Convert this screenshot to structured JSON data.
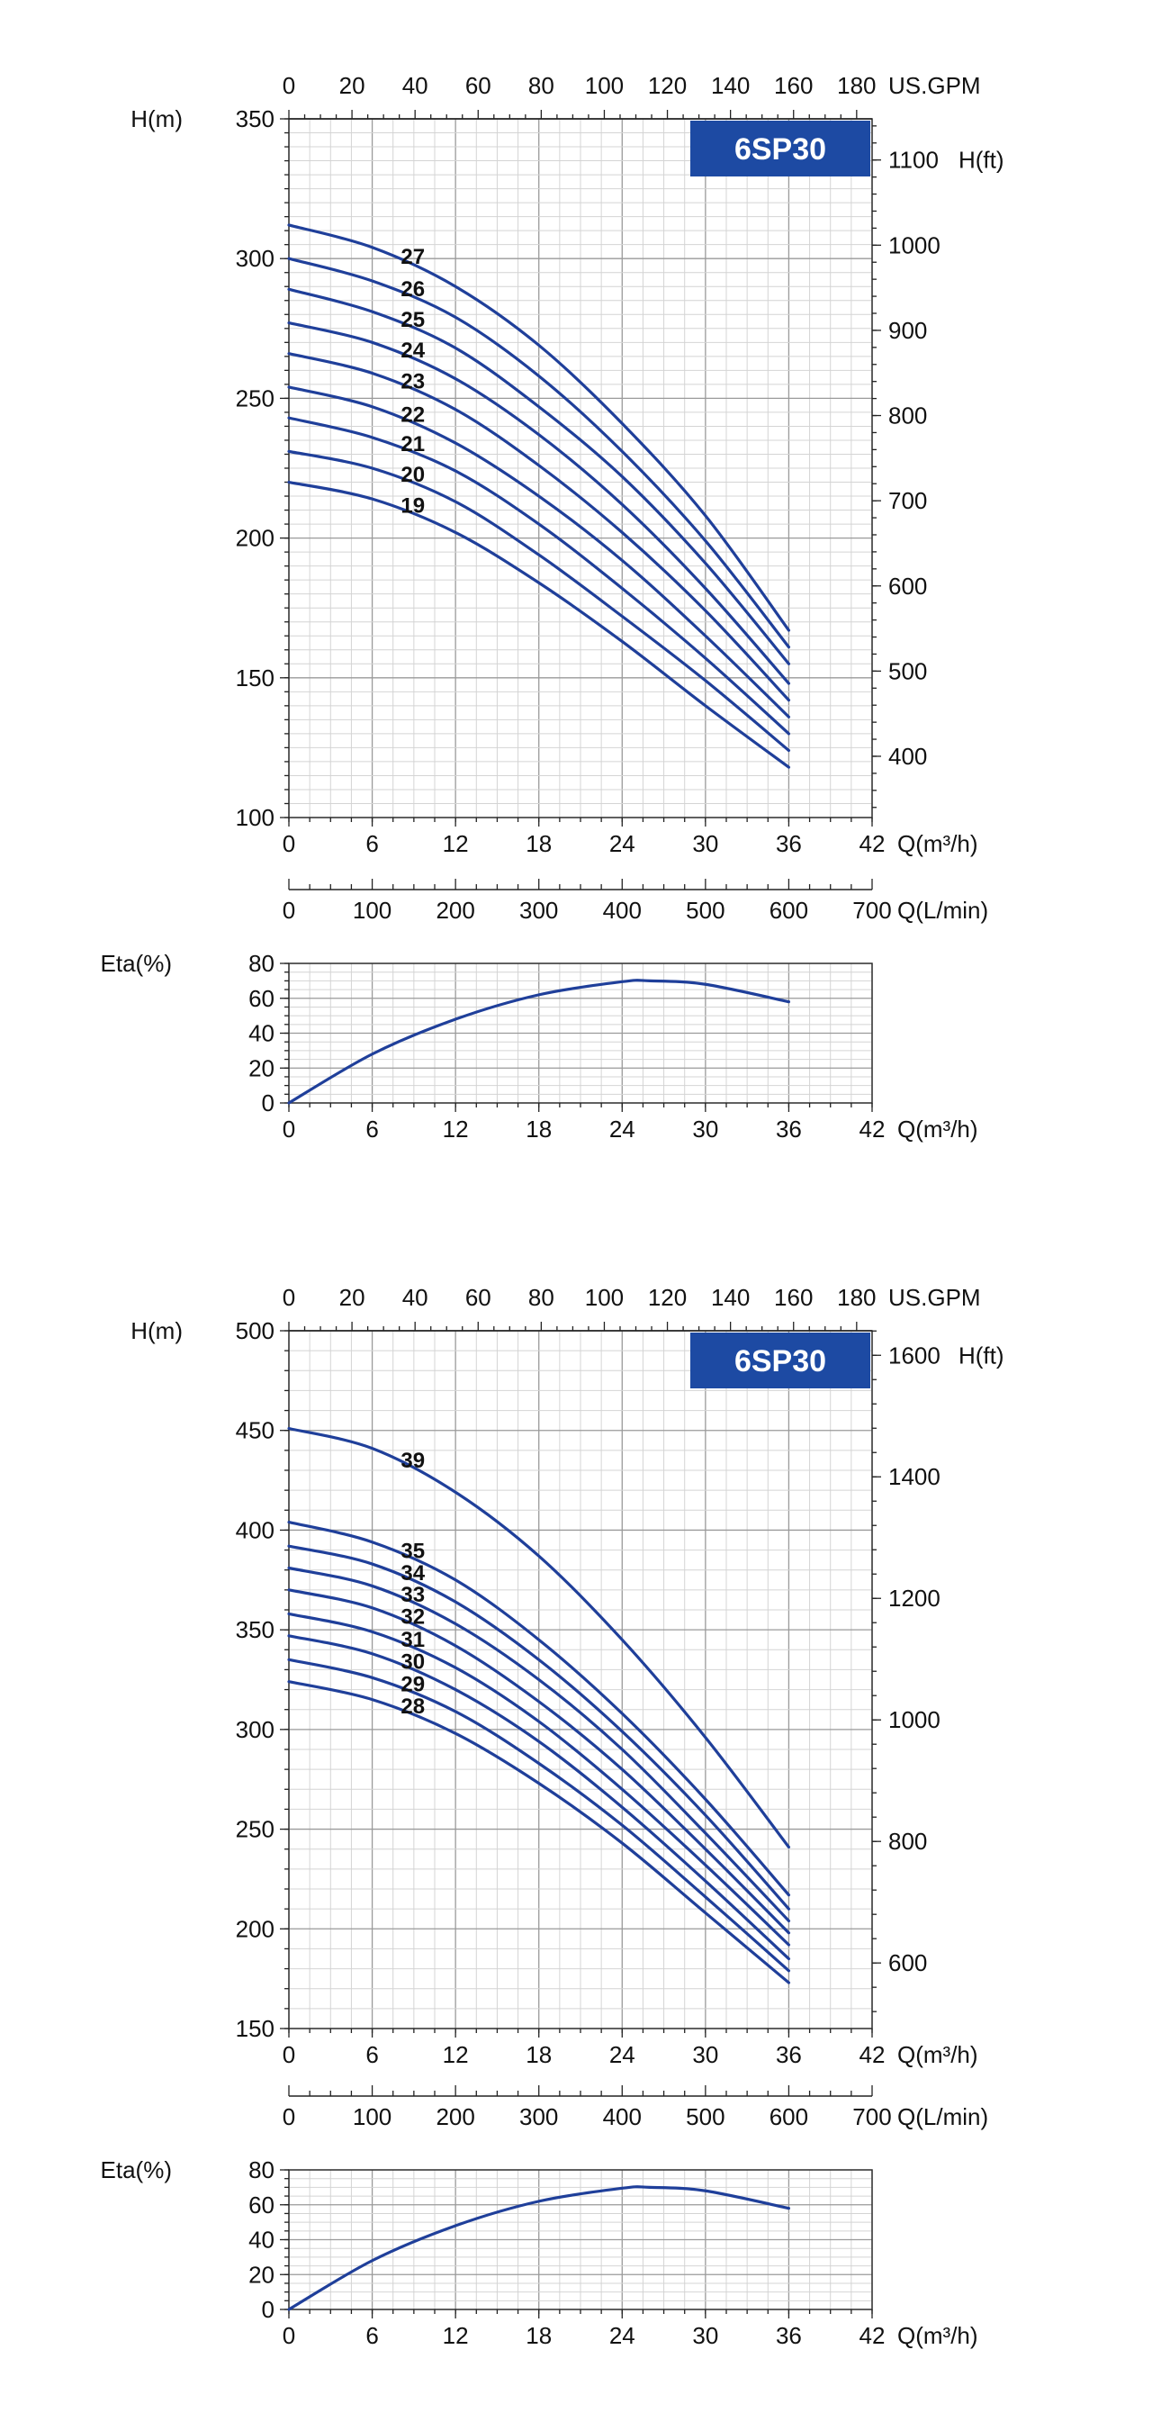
{
  "colors": {
    "curve": "#1f3f9a",
    "badge": "#1d4aa3",
    "badge_text": "#ffffff",
    "grid_minor": "#d4d4d4",
    "grid_major": "#9a9a9a"
  },
  "axes_text": {
    "top_unit": "US.GPM",
    "head_unit": "H(m)",
    "head_ft_unit": "H(ft)",
    "flow_unit": "Q(m³/h)",
    "lmin_unit": "Q(L/min)",
    "eta_unit": "Eta(%)"
  },
  "chart_data": [
    {
      "type": "line",
      "title": "6SP30",
      "xlabel": "Q(m³/h)",
      "ylabel": "H(m)",
      "xlim": [
        0,
        42
      ],
      "ylim": [
        100,
        350
      ],
      "x_ticks": [
        "0",
        "6",
        "12",
        "18",
        "24",
        "30",
        "36",
        "42"
      ],
      "y_ticks": [
        "100",
        "150",
        "200",
        "250",
        "300",
        "350"
      ],
      "secondary_top_axis": {
        "label": "US.GPM",
        "range": [
          0,
          184.9
        ],
        "ticks": [
          "0",
          "20",
          "40",
          "60",
          "80",
          "100",
          "120",
          "140",
          "160",
          "180"
        ]
      },
      "secondary_right_axis": {
        "label": "H(ft)",
        "range": [
          328.1,
          1148.3
        ],
        "ticks": [
          "400",
          "500",
          "600",
          "700",
          "800",
          "900",
          "1000",
          "1100"
        ]
      },
      "x": [
        0,
        6,
        12,
        18,
        24,
        30,
        36
      ],
      "series": [
        {
          "name": "19",
          "values": [
            220,
            214,
            202,
            184,
            163,
            140,
            118
          ]
        },
        {
          "name": "20",
          "values": [
            231,
            225,
            213,
            194,
            172,
            149,
            124
          ]
        },
        {
          "name": "21",
          "values": [
            243,
            236,
            224,
            205,
            182,
            157,
            130
          ]
        },
        {
          "name": "22",
          "values": [
            254,
            247,
            234,
            215,
            192,
            165,
            136
          ]
        },
        {
          "name": "23",
          "values": [
            266,
            259,
            246,
            226,
            202,
            174,
            142
          ]
        },
        {
          "name": "24",
          "values": [
            277,
            270,
            257,
            237,
            212,
            182,
            148
          ]
        },
        {
          "name": "25",
          "values": [
            289,
            281,
            268,
            247,
            222,
            191,
            155
          ]
        },
        {
          "name": "26",
          "values": [
            300,
            292,
            279,
            258,
            231,
            199,
            161
          ]
        },
        {
          "name": "27",
          "values": [
            312,
            304,
            290,
            269,
            241,
            208,
            167
          ]
        }
      ]
    },
    {
      "type": "line",
      "title": "",
      "xlabel": "Q(m³/h)",
      "ylabel": "Eta(%)",
      "xlim": [
        0,
        42
      ],
      "ylim": [
        0,
        80
      ],
      "x_ticks": [
        "0",
        "6",
        "12",
        "18",
        "24",
        "30",
        "36",
        "42"
      ],
      "y_ticks": [
        "0",
        "20",
        "40",
        "60",
        "80"
      ],
      "secondary_top_axis": {
        "label": "Q(L/min)",
        "range": [
          0,
          700
        ],
        "ticks": [
          "0",
          "100",
          "200",
          "300",
          "400",
          "500",
          "600",
          "700"
        ]
      },
      "x": [
        0,
        6,
        12,
        18,
        24,
        26,
        30,
        36
      ],
      "series": [
        {
          "name": "",
          "values": [
            0,
            28,
            48,
            62,
            69.5,
            70,
            68,
            58
          ]
        }
      ]
    },
    {
      "type": "line",
      "title": "6SP30",
      "xlabel": "Q(m³/h)",
      "ylabel": "H(m)",
      "xlim": [
        0,
        42
      ],
      "ylim": [
        150,
        500
      ],
      "x_ticks": [
        "0",
        "6",
        "12",
        "18",
        "24",
        "30",
        "36",
        "42"
      ],
      "y_ticks": [
        "150",
        "200",
        "250",
        "300",
        "350",
        "400",
        "450",
        "500"
      ],
      "secondary_top_axis": {
        "label": "US.GPM",
        "range": [
          0,
          184.9
        ],
        "ticks": [
          "0",
          "20",
          "40",
          "60",
          "80",
          "100",
          "120",
          "140",
          "160",
          "180"
        ]
      },
      "secondary_right_axis": {
        "label": "H(ft)",
        "range": [
          492.1,
          1640.4
        ],
        "ticks": [
          "600",
          "800",
          "1000",
          "1200",
          "1400",
          "1600"
        ]
      },
      "x": [
        0,
        6,
        12,
        18,
        24,
        30,
        36
      ],
      "series": [
        {
          "name": "28",
          "values": [
            324,
            315,
            298,
            273,
            243,
            208,
            173
          ]
        },
        {
          "name": "29",
          "values": [
            335,
            326,
            309,
            283,
            252,
            216,
            179
          ]
        },
        {
          "name": "30",
          "values": [
            347,
            338,
            320,
            294,
            261,
            224,
            185
          ]
        },
        {
          "name": "31",
          "values": [
            358,
            349,
            331,
            304,
            270,
            232,
            192
          ]
        },
        {
          "name": "32",
          "values": [
            370,
            361,
            342,
            314,
            280,
            240,
            198
          ]
        },
        {
          "name": "33",
          "values": [
            381,
            372,
            353,
            325,
            290,
            248,
            204
          ]
        },
        {
          "name": "34",
          "values": [
            392,
            383,
            364,
            335,
            299,
            257,
            210
          ]
        },
        {
          "name": "35",
          "values": [
            404,
            394,
            375,
            345,
            308,
            265,
            217
          ]
        },
        {
          "name": "39",
          "values": [
            451,
            441,
            419,
            387,
            345,
            296,
            241
          ]
        }
      ]
    },
    {
      "type": "line",
      "title": "",
      "xlabel": "Q(m³/h)",
      "ylabel": "Eta(%)",
      "xlim": [
        0,
        42
      ],
      "ylim": [
        0,
        80
      ],
      "x_ticks": [
        "0",
        "6",
        "12",
        "18",
        "24",
        "30",
        "36",
        "42"
      ],
      "y_ticks": [
        "0",
        "20",
        "40",
        "60",
        "80"
      ],
      "secondary_top_axis": {
        "label": "Q(L/min)",
        "range": [
          0,
          700
        ],
        "ticks": [
          "0",
          "100",
          "200",
          "300",
          "400",
          "500",
          "600",
          "700"
        ]
      },
      "x": [
        0,
        6,
        12,
        18,
        24,
        26,
        30,
        36
      ],
      "series": [
        {
          "name": "",
          "values": [
            0,
            28,
            48,
            62,
            69.5,
            70,
            68,
            58
          ]
        }
      ]
    }
  ]
}
